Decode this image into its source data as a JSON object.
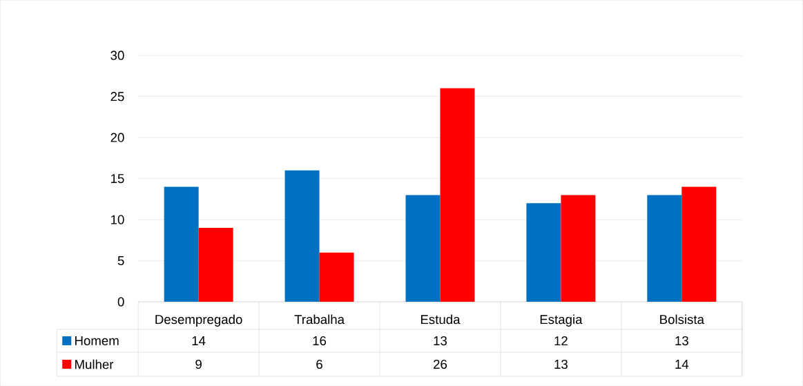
{
  "chart_data": {
    "type": "bar",
    "categories": [
      "Desempregado",
      "Trabalha",
      "Estuda",
      "Estagia",
      "Bolsista"
    ],
    "series": [
      {
        "name": "Homem",
        "color": "#0070c0",
        "values": [
          14,
          16,
          13,
          12,
          13
        ]
      },
      {
        "name": "Mulher",
        "color": "#ff0000",
        "values": [
          9,
          6,
          26,
          13,
          14
        ]
      }
    ],
    "ylim": [
      0,
      30
    ],
    "yticks": [
      0,
      5,
      10,
      15,
      20,
      25,
      30
    ],
    "grid": "y",
    "legend": "bottom",
    "data_labels": true
  }
}
